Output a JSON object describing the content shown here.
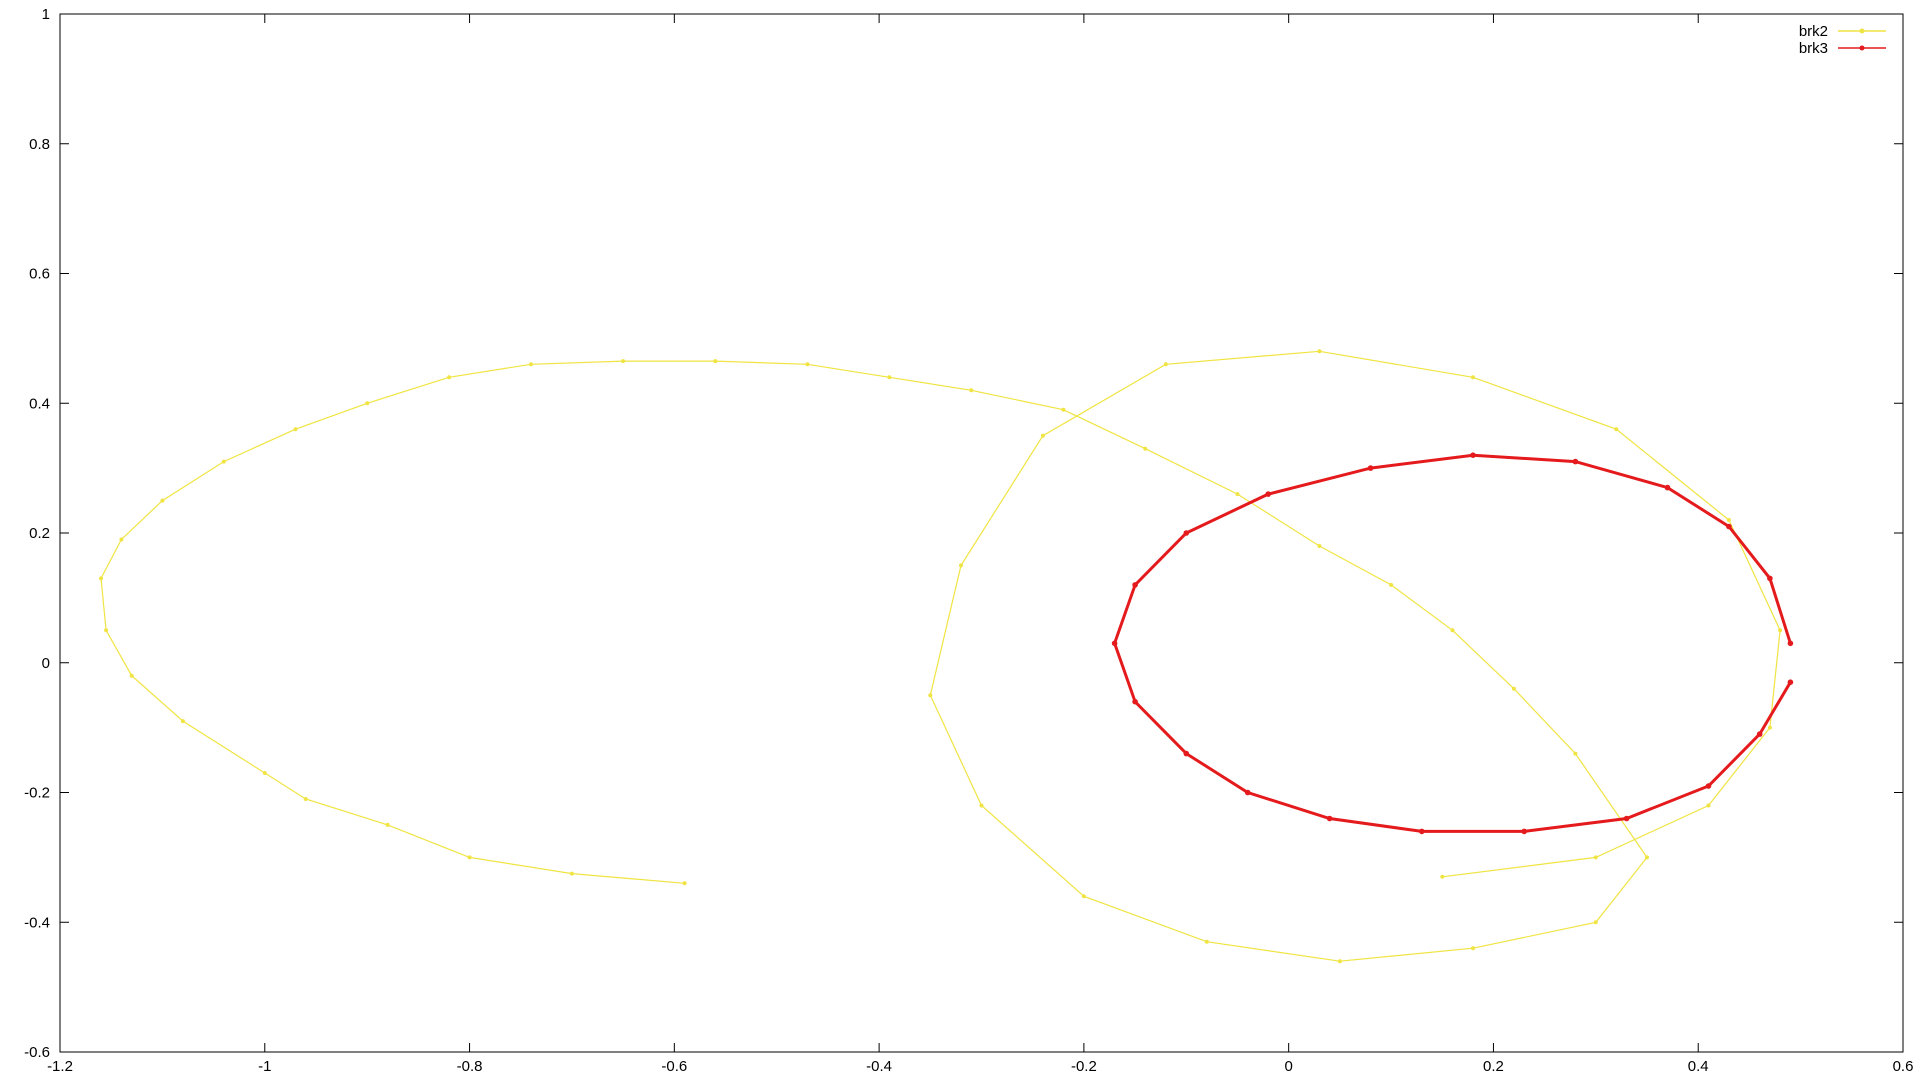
{
  "chart_data": {
    "type": "line",
    "title": "",
    "xlabel": "",
    "ylabel": "",
    "xlim": [
      -1.2,
      0.6
    ],
    "ylim": [
      -0.6,
      1.0
    ],
    "xticks": [
      "-1.2",
      "-1",
      "-0.8",
      "-0.6",
      "-0.4",
      "-0.2",
      "0",
      "0.2",
      "0.4",
      "0.6"
    ],
    "yticks": [
      "-0.6",
      "-0.4",
      "-0.2",
      "0",
      "0.2",
      "0.4",
      "0.6",
      "0.8",
      "1"
    ],
    "grid": false,
    "legend": "top-right",
    "series": [
      {
        "name": "brk2",
        "color": "#f0e442",
        "marker": "dot",
        "points": [
          [
            -0.59,
            -0.34
          ],
          [
            -0.7,
            -0.325
          ],
          [
            -0.8,
            -0.3
          ],
          [
            -0.88,
            -0.25
          ],
          [
            -0.96,
            -0.21
          ],
          [
            -1.0,
            -0.17
          ],
          [
            -1.08,
            -0.09
          ],
          [
            -1.13,
            -0.02
          ],
          [
            -1.155,
            0.05
          ],
          [
            -1.16,
            0.13
          ],
          [
            -1.14,
            0.19
          ],
          [
            -1.1,
            0.25
          ],
          [
            -1.04,
            0.31
          ],
          [
            -0.97,
            0.36
          ],
          [
            -0.9,
            0.4
          ],
          [
            -0.82,
            0.44
          ],
          [
            -0.74,
            0.46
          ],
          [
            -0.65,
            0.465
          ],
          [
            -0.56,
            0.465
          ],
          [
            -0.47,
            0.46
          ],
          [
            -0.39,
            0.44
          ],
          [
            -0.31,
            0.42
          ],
          [
            -0.22,
            0.39
          ],
          [
            -0.14,
            0.33
          ],
          [
            -0.05,
            0.26
          ],
          [
            0.03,
            0.18
          ],
          [
            0.1,
            0.12
          ],
          [
            0.16,
            0.05
          ],
          [
            0.22,
            -0.04
          ],
          [
            0.28,
            -0.14
          ],
          [
            0.35,
            -0.3
          ],
          [
            0.3,
            -0.4
          ],
          [
            0.18,
            -0.44
          ],
          [
            0.05,
            -0.46
          ],
          [
            -0.08,
            -0.43
          ],
          [
            -0.2,
            -0.36
          ],
          [
            -0.3,
            -0.22
          ],
          [
            -0.35,
            -0.05
          ],
          [
            -0.32,
            0.15
          ],
          [
            -0.24,
            0.35
          ],
          [
            -0.12,
            0.46
          ],
          [
            0.03,
            0.48
          ],
          [
            0.18,
            0.44
          ],
          [
            0.32,
            0.36
          ],
          [
            0.43,
            0.22
          ],
          [
            0.48,
            0.05
          ],
          [
            0.47,
            -0.1
          ],
          [
            0.41,
            -0.22
          ],
          [
            0.3,
            -0.3
          ],
          [
            0.15,
            -0.33
          ]
        ]
      },
      {
        "name": "brk3",
        "color": "#e41a1c",
        "marker": "star",
        "points": [
          [
            0.49,
            0.03
          ],
          [
            0.47,
            0.13
          ],
          [
            0.43,
            0.21
          ],
          [
            0.37,
            0.27
          ],
          [
            0.28,
            0.31
          ],
          [
            0.18,
            0.32
          ],
          [
            0.08,
            0.3
          ],
          [
            -0.02,
            0.26
          ],
          [
            -0.1,
            0.2
          ],
          [
            -0.15,
            0.12
          ],
          [
            -0.17,
            0.03
          ],
          [
            -0.15,
            -0.06
          ],
          [
            -0.1,
            -0.14
          ],
          [
            -0.04,
            -0.2
          ],
          [
            0.04,
            -0.24
          ],
          [
            0.13,
            -0.26
          ],
          [
            0.23,
            -0.26
          ],
          [
            0.33,
            -0.24
          ],
          [
            0.41,
            -0.19
          ],
          [
            0.46,
            -0.11
          ],
          [
            0.49,
            -0.03
          ]
        ]
      }
    ]
  }
}
